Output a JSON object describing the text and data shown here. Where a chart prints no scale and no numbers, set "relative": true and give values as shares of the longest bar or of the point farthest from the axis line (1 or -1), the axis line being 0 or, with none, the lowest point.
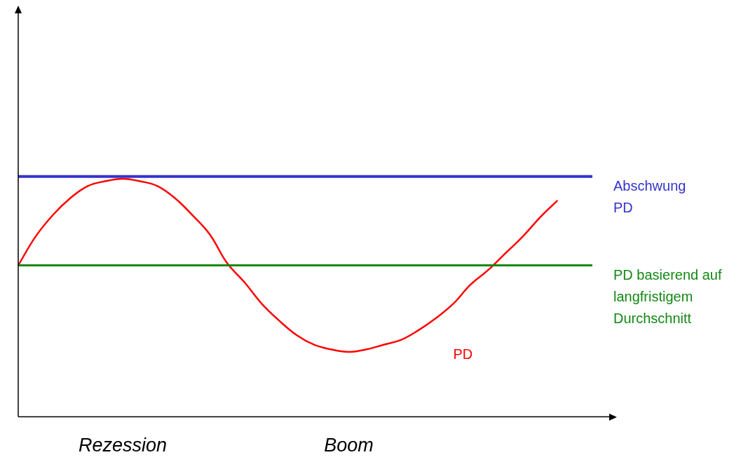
{
  "chart_data": {
    "type": "line",
    "relative": true,
    "legend": false,
    "grid": false,
    "marker": "none",
    "line_style": "solid",
    "categories": [
      null,
      null,
      null,
      null,
      null,
      null,
      "Rezession",
      null,
      null,
      null,
      null,
      null,
      null,
      null,
      null,
      null,
      null,
      null,
      null,
      "Boom",
      null,
      null,
      null,
      null,
      null,
      null,
      null,
      null,
      null,
      null,
      null,
      null,
      null,
      null
    ],
    "series": [
      {
        "name": "Abschwung PD",
        "color": "#3333cc",
        "values": [
          1,
          1,
          1,
          1,
          1,
          1,
          1,
          1,
          1,
          1,
          1,
          1,
          1,
          1,
          1,
          1,
          1,
          1,
          1,
          1,
          1,
          1,
          1,
          1,
          1,
          1,
          1,
          1,
          1,
          1,
          1,
          1,
          1,
          1
        ]
      },
      {
        "name": "PD basierend auf langfristigem Durchschnitt",
        "color": "#138813",
        "values": [
          0.63,
          0.63,
          0.63,
          0.63,
          0.63,
          0.63,
          0.63,
          0.63,
          0.63,
          0.63,
          0.63,
          0.63,
          0.63,
          0.63,
          0.63,
          0.63,
          0.63,
          0.63,
          0.63,
          0.63,
          0.63,
          0.63,
          0.63,
          0.63,
          0.63,
          0.63,
          0.63,
          0.63,
          0.63,
          0.63,
          0.63,
          0.63,
          0.63,
          0.63
        ]
      },
      {
        "name": "PD",
        "color": "#ff0000",
        "values": [
          0.63,
          0.75,
          0.84,
          0.91,
          0.96,
          0.98,
          0.99,
          0.98,
          0.96,
          0.91,
          0.84,
          0.76,
          0.64,
          0.56,
          0.47,
          0.4,
          0.34,
          0.3,
          0.28,
          0.27,
          0.28,
          0.3,
          0.32,
          0.36,
          0.41,
          0.47,
          0.55,
          0.61,
          0.68,
          0.75,
          0.83,
          0.9,
          null,
          null
        ]
      }
    ]
  }
}
